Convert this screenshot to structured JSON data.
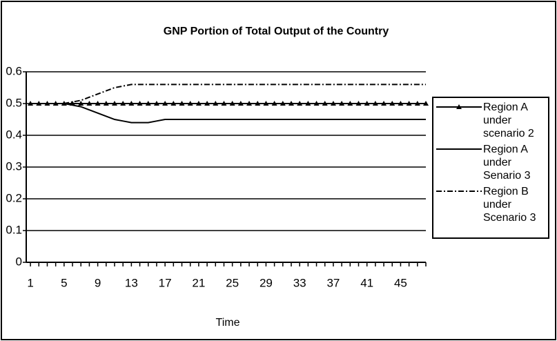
{
  "chart_data": {
    "type": "line",
    "title": "GNP Portion of Total Output of the Country",
    "x_label": "Time",
    "x": [
      1,
      2,
      3,
      4,
      5,
      6,
      7,
      8,
      9,
      10,
      11,
      12,
      13,
      14,
      15,
      16,
      17,
      18,
      19,
      20,
      21,
      22,
      23,
      24,
      25,
      26,
      27,
      28,
      29,
      30,
      31,
      32,
      33,
      34,
      35,
      36,
      37,
      38,
      39,
      40,
      41,
      42,
      43,
      44,
      45,
      46,
      47,
      48
    ],
    "xlim": [
      0.5,
      48
    ],
    "xticks": [
      1,
      5,
      9,
      13,
      17,
      21,
      25,
      29,
      33,
      37,
      41,
      45
    ],
    "ylim": [
      0,
      0.6
    ],
    "yticks": [
      0,
      0.1,
      0.2,
      0.3,
      0.4,
      0.5,
      0.6
    ],
    "grid": true,
    "legend": "right",
    "series": [
      {
        "name": "Region A under scenario 2",
        "color": "#000000",
        "marker": "triangle",
        "dash": "solid",
        "values": [
          0.5,
          0.5,
          0.5,
          0.5,
          0.5,
          0.5,
          0.5,
          0.5,
          0.5,
          0.5,
          0.5,
          0.5,
          0.5,
          0.5,
          0.5,
          0.5,
          0.5,
          0.5,
          0.5,
          0.5,
          0.5,
          0.5,
          0.5,
          0.5,
          0.5,
          0.5,
          0.5,
          0.5,
          0.5,
          0.5,
          0.5,
          0.5,
          0.5,
          0.5,
          0.5,
          0.5,
          0.5,
          0.5,
          0.5,
          0.5,
          0.5,
          0.5,
          0.5,
          0.5,
          0.5,
          0.5,
          0.5,
          0.5
        ]
      },
      {
        "name": "Region A under Senario 3",
        "color": "#000000",
        "marker": "none",
        "dash": "solid",
        "values": [
          0.5,
          0.5,
          0.5,
          0.5,
          0.5,
          0.495,
          0.49,
          0.48,
          0.47,
          0.46,
          0.45,
          0.445,
          0.44,
          0.44,
          0.44,
          0.445,
          0.45,
          0.45,
          0.45,
          0.45,
          0.45,
          0.45,
          0.45,
          0.45,
          0.45,
          0.45,
          0.45,
          0.45,
          0.45,
          0.45,
          0.45,
          0.45,
          0.45,
          0.45,
          0.45,
          0.45,
          0.45,
          0.45,
          0.45,
          0.45,
          0.45,
          0.45,
          0.45,
          0.45,
          0.45,
          0.45,
          0.45,
          0.45
        ]
      },
      {
        "name": "Region B under Scenario 3",
        "color": "#000000",
        "marker": "none",
        "dash": "dashdot",
        "values": [
          0.5,
          0.5,
          0.5,
          0.5,
          0.5,
          0.505,
          0.51,
          0.52,
          0.53,
          0.54,
          0.55,
          0.555,
          0.56,
          0.56,
          0.56,
          0.56,
          0.56,
          0.56,
          0.56,
          0.56,
          0.56,
          0.56,
          0.56,
          0.56,
          0.56,
          0.56,
          0.56,
          0.56,
          0.56,
          0.56,
          0.56,
          0.56,
          0.56,
          0.56,
          0.56,
          0.56,
          0.56,
          0.56,
          0.56,
          0.56,
          0.56,
          0.56,
          0.56,
          0.56,
          0.56,
          0.56,
          0.56,
          0.56
        ]
      }
    ]
  }
}
